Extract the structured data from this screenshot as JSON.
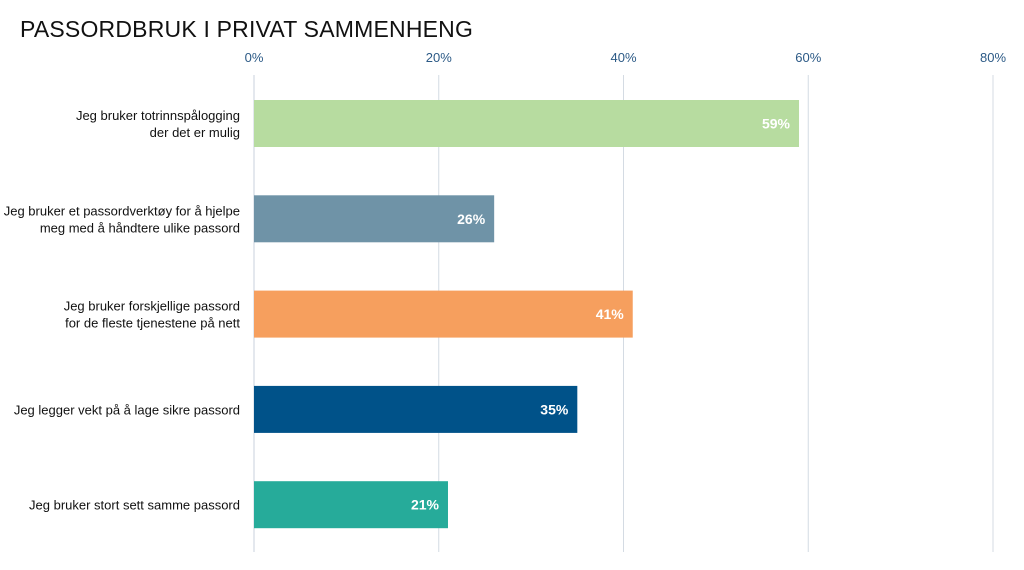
{
  "chart_data": {
    "type": "bar",
    "orientation": "horizontal",
    "title": "PASSORDBRUK I PRIVAT SAMMENHENG",
    "xlabel": "",
    "ylabel": "",
    "xlim": [
      0,
      80
    ],
    "x_ticks": [
      0,
      20,
      40,
      60,
      80
    ],
    "x_tick_labels": [
      "0%",
      "20%",
      "40%",
      "60%",
      "80%"
    ],
    "grid": "vertical",
    "categories": [
      [
        "Jeg bruker totrinnspålogging",
        "der det er mulig"
      ],
      [
        "Jeg bruker et passordverktøy for å hjelpe",
        "meg med å håndtere ulike passord"
      ],
      [
        "Jeg bruker forskjellige passord",
        "for de fleste tjenestene på nett"
      ],
      [
        "Jeg legger vekt på å lage sikre passord"
      ],
      [
        "Jeg bruker stort sett samme passord"
      ]
    ],
    "values": [
      59,
      26,
      41,
      35,
      21
    ],
    "value_labels": [
      "59%",
      "26%",
      "41%",
      "35%",
      "21%"
    ],
    "colors": [
      "#b7dca0",
      "#6f93a7",
      "#f69f5e",
      "#005289",
      "#26ab9a"
    ]
  }
}
